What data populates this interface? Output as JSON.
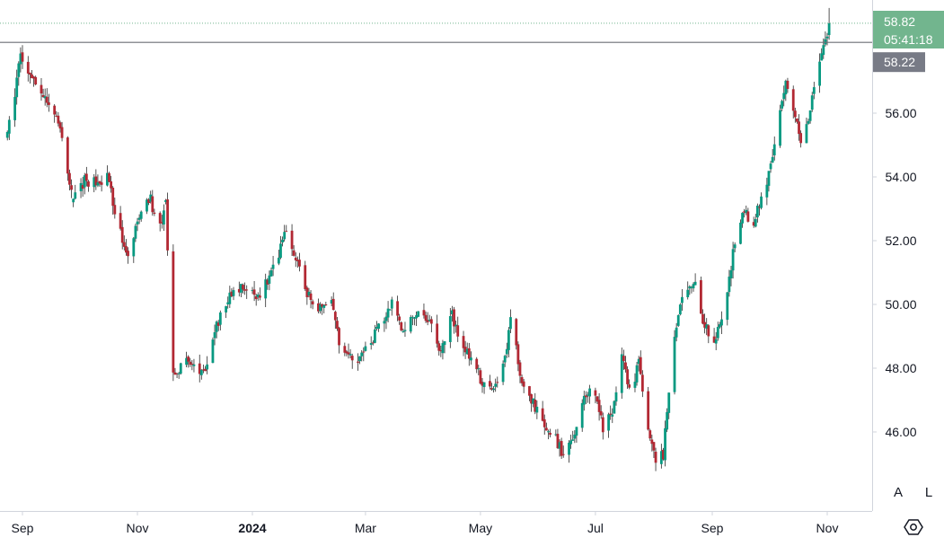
{
  "chart_data": {
    "type": "candlestick",
    "x_tick_labels": [
      {
        "label": "Sep",
        "date": "2023-09-01"
      },
      {
        "label": "Nov",
        "date": "2023-11-01"
      },
      {
        "label": "2024",
        "date": "2024-01-01",
        "bold": true
      },
      {
        "label": "Mar",
        "date": "2024-03-01"
      },
      {
        "label": "May",
        "date": "2024-05-01"
      },
      {
        "label": "Jul",
        "date": "2024-07-01"
      },
      {
        "label": "Sep",
        "date": "2024-09-01"
      },
      {
        "label": "Nov",
        "date": "2024-11-01"
      }
    ],
    "price_ticks": [
      "46.00",
      "48.00",
      "50.00",
      "52.00",
      "54.00",
      "56.00"
    ],
    "ylim": [
      44.7,
      59.3
    ],
    "path_points": [
      [
        "2023-08-24",
        55.5
      ],
      [
        "2023-08-28",
        56.6
      ],
      [
        "2023-08-31",
        57.8
      ],
      [
        "2023-09-05",
        57.2
      ],
      [
        "2023-09-10",
        56.7
      ],
      [
        "2023-09-15",
        56.3
      ],
      [
        "2023-09-20",
        55.7
      ],
      [
        "2023-09-25",
        54.2
      ],
      [
        "2023-09-28",
        53.3
      ],
      [
        "2023-10-04",
        53.9
      ],
      [
        "2023-10-10",
        53.8
      ],
      [
        "2023-10-16",
        54.0
      ],
      [
        "2023-10-20",
        53.0
      ],
      [
        "2023-10-26",
        51.5
      ],
      [
        "2023-10-30",
        52.2
      ],
      [
        "2023-11-04",
        53.0
      ],
      [
        "2023-11-08",
        53.3
      ],
      [
        "2023-11-12",
        52.2
      ],
      [
        "2023-11-16",
        53.2
      ],
      [
        "2023-11-20",
        47.8
      ],
      [
        "2023-11-27",
        48.2
      ],
      [
        "2023-12-04",
        47.8
      ],
      [
        "2023-12-08",
        48.1
      ],
      [
        "2023-12-12",
        49.2
      ],
      [
        "2023-12-18",
        50.1
      ],
      [
        "2023-12-26",
        50.5
      ],
      [
        "2024-01-03",
        50.2
      ],
      [
        "2024-01-09",
        50.7
      ],
      [
        "2024-01-14",
        51.4
      ],
      [
        "2024-01-19",
        52.3
      ],
      [
        "2024-01-24",
        51.5
      ],
      [
        "2024-01-29",
        50.4
      ],
      [
        "2024-02-05",
        49.8
      ],
      [
        "2024-02-12",
        50.0
      ],
      [
        "2024-02-17",
        48.5
      ],
      [
        "2024-02-24",
        48.2
      ],
      [
        "2024-03-02",
        48.6
      ],
      [
        "2024-03-10",
        49.5
      ],
      [
        "2024-03-15",
        50.1
      ],
      [
        "2024-03-21",
        49.2
      ],
      [
        "2024-03-28",
        49.8
      ],
      [
        "2024-04-05",
        49.5
      ],
      [
        "2024-04-10",
        48.4
      ],
      [
        "2024-04-16",
        49.7
      ],
      [
        "2024-04-21",
        48.6
      ],
      [
        "2024-04-27",
        48.3
      ],
      [
        "2024-05-02",
        47.5
      ],
      [
        "2024-05-08",
        47.2
      ],
      [
        "2024-05-13",
        48.0
      ],
      [
        "2024-05-18",
        49.9
      ],
      [
        "2024-05-22",
        47.6
      ],
      [
        "2024-05-28",
        47.0
      ],
      [
        "2024-06-02",
        46.4
      ],
      [
        "2024-06-08",
        46.0
      ],
      [
        "2024-06-14",
        45.3
      ],
      [
        "2024-06-21",
        46.0
      ],
      [
        "2024-06-25",
        47.2
      ],
      [
        "2024-06-30",
        47.4
      ],
      [
        "2024-07-05",
        46.1
      ],
      [
        "2024-07-10",
        46.6
      ],
      [
        "2024-07-15",
        48.3
      ],
      [
        "2024-07-20",
        47.1
      ],
      [
        "2024-07-24",
        48.2
      ],
      [
        "2024-07-28",
        46.3
      ],
      [
        "2024-08-02",
        45.1
      ],
      [
        "2024-08-06",
        45.3
      ],
      [
        "2024-08-11",
        48.8
      ],
      [
        "2024-08-17",
        50.4
      ],
      [
        "2024-08-23",
        50.6
      ],
      [
        "2024-08-28",
        49.3
      ],
      [
        "2024-09-02",
        48.9
      ],
      [
        "2024-09-07",
        49.8
      ],
      [
        "2024-09-12",
        51.6
      ],
      [
        "2024-09-17",
        52.9
      ],
      [
        "2024-09-23",
        52.6
      ],
      [
        "2024-09-28",
        53.5
      ],
      [
        "2024-10-02",
        54.3
      ],
      [
        "2024-10-06",
        55.8
      ],
      [
        "2024-10-10",
        56.9
      ],
      [
        "2024-10-15",
        56.0
      ],
      [
        "2024-10-19",
        54.9
      ],
      [
        "2024-10-23",
        56.1
      ],
      [
        "2024-10-27",
        57.6
      ],
      [
        "2024-10-31",
        58.3
      ],
      [
        "2024-11-02",
        58.82
      ]
    ],
    "gap_after": [
      "2023-09-28",
      "2023-11-16"
    ],
    "colors": {
      "up": "#089981",
      "down": "#b22833",
      "wick": "#2b2b2b"
    },
    "last_price": {
      "value": "58.82",
      "countdown": "05:41:18",
      "color": "#72b58e"
    },
    "reference_line": {
      "value": "58.22",
      "label_color": "#787b86"
    }
  },
  "controls": {
    "auto_label": "A",
    "log_label": "L"
  },
  "icons": {
    "settings": "settings-icon"
  }
}
